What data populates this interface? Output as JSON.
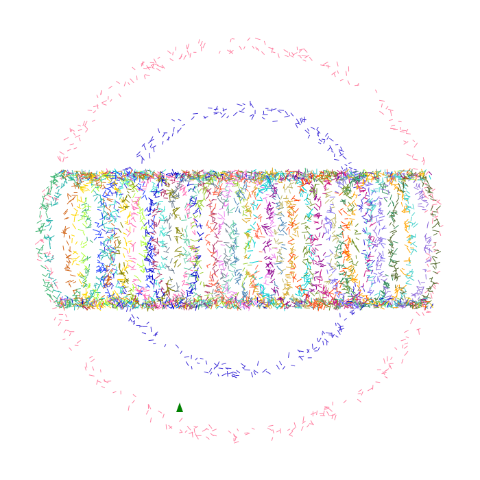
{
  "scene": {
    "background": "#ffffff",
    "description_free": true
  },
  "particle_field": {
    "mark_style": "short-line-segments",
    "rings": [
      {
        "name": "outer-pink-ring",
        "color": "#ff7fa0",
        "density": "sparse"
      },
      {
        "name": "blue-ring",
        "color": "#3a2bd6",
        "density": "sparse"
      }
    ],
    "band_palette": [
      "#3cb371",
      "#20b2aa",
      "#d2691e",
      "#ffd700",
      "#adff2f",
      "#1e3cff",
      "#40e0d0",
      "#808000",
      "#ff69b4",
      "#0000cd",
      "#b03060",
      "#708090",
      "#66cdaa",
      "#9acd32",
      "#ff6347",
      "#ee82ee",
      "#4682b4",
      "#daa520",
      "#00ced1",
      "#8b008b",
      "#bdb76b",
      "#ff4500",
      "#6b8e23",
      "#c71585",
      "#7b68ee",
      "#2e8b57",
      "#ffa500",
      "#48d1cc",
      "#9370db",
      "#556b2f"
    ]
  },
  "player_marker": {
    "shape": "triangle",
    "color": "#008000"
  }
}
